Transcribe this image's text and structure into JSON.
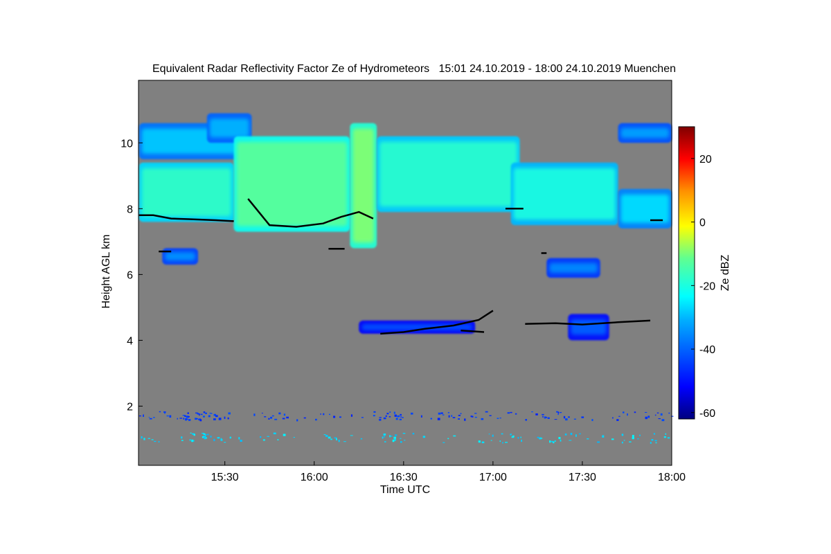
{
  "chart_data": {
    "type": "heatmap",
    "title": "Equivalent Radar Reflectivity Factor Ze of Hydrometeors   15:01 24.10.2019 - 18:00 24.10.2019 Muenchen",
    "xlabel": "Time UTC",
    "ylabel": "Height AGL km",
    "xlim": [
      15.017,
      18.0
    ],
    "ylim": [
      0.2,
      11.9
    ],
    "x_ticks": [
      {
        "value": 15.5,
        "label": "15:30"
      },
      {
        "value": 16.0,
        "label": "16:00"
      },
      {
        "value": 16.5,
        "label": "16:30"
      },
      {
        "value": 17.0,
        "label": "17:00"
      },
      {
        "value": 17.5,
        "label": "17:30"
      },
      {
        "value": 18.0,
        "label": "18:00"
      }
    ],
    "y_ticks": [
      {
        "value": 2,
        "label": "2"
      },
      {
        "value": 4,
        "label": "4"
      },
      {
        "value": 6,
        "label": "6"
      },
      {
        "value": 8,
        "label": "8"
      },
      {
        "value": 10,
        "label": "10"
      }
    ],
    "colorbar": {
      "label": "Ze dBZ",
      "range": [
        -62,
        30
      ],
      "ticks": [
        {
          "value": -60,
          "label": "-60"
        },
        {
          "value": -40,
          "label": "-40"
        },
        {
          "value": -20,
          "label": "-20"
        },
        {
          "value": 0,
          "label": "0"
        },
        {
          "value": 20,
          "label": "20"
        }
      ]
    },
    "background_color": "#808080",
    "echo_regions": [
      {
        "name": "upper-cirrus-left",
        "x": [
          15.02,
          15.58
        ],
        "base_km": 9.5,
        "top_km": 10.6,
        "ze_dbz": -28
      },
      {
        "name": "upper-cirrus-left-2",
        "x": [
          15.4,
          15.65
        ],
        "base_km": 10.0,
        "top_km": 10.9,
        "ze_dbz": -30
      },
      {
        "name": "main-cirrus-west",
        "x": [
          15.02,
          15.55
        ],
        "base_km": 7.6,
        "top_km": 9.4,
        "ze_dbz": -17
      },
      {
        "name": "main-cirrus-central",
        "x": [
          15.55,
          16.2
        ],
        "base_km": 7.3,
        "top_km": 10.2,
        "ze_dbz": -12
      },
      {
        "name": "main-cirrus-peak",
        "x": [
          16.2,
          16.35
        ],
        "base_km": 6.8,
        "top_km": 10.6,
        "ze_dbz": -9
      },
      {
        "name": "main-cirrus-east",
        "x": [
          16.35,
          17.15
        ],
        "base_km": 7.9,
        "top_km": 10.2,
        "ze_dbz": -18
      },
      {
        "name": "cirrus-trailing",
        "x": [
          17.1,
          17.7
        ],
        "base_km": 7.5,
        "top_km": 9.4,
        "ze_dbz": -20
      },
      {
        "name": "cirrus-far-east",
        "x": [
          17.7,
          18.0
        ],
        "base_km": 7.4,
        "top_km": 8.6,
        "ze_dbz": -26
      },
      {
        "name": "upper-patches-east",
        "x": [
          17.7,
          18.0
        ],
        "base_km": 10.0,
        "top_km": 10.6,
        "ze_dbz": -32
      },
      {
        "name": "patch-6.5km",
        "x": [
          15.15,
          15.35
        ],
        "base_km": 6.3,
        "top_km": 6.8,
        "ze_dbz": -34
      },
      {
        "name": "patch-6.2km-east",
        "x": [
          17.3,
          17.6
        ],
        "base_km": 5.9,
        "top_km": 6.5,
        "ze_dbz": -35
      },
      {
        "name": "midlevel-4.3km",
        "x": [
          16.25,
          16.9
        ],
        "base_km": 4.2,
        "top_km": 4.6,
        "ze_dbz": -42
      },
      {
        "name": "midlevel-4.5km-east",
        "x": [
          17.42,
          17.65
        ],
        "base_km": 4.0,
        "top_km": 4.8,
        "ze_dbz": -40
      },
      {
        "name": "low-noise-clutter",
        "x": [
          15.02,
          18.0
        ],
        "base_km": 0.3,
        "top_km": 1.9,
        "ze_dbz": -50
      }
    ],
    "black_trace_segments": [
      {
        "x": [
          15.02,
          15.1,
          15.2,
          15.3,
          15.45,
          15.55
        ],
        "y": [
          7.8,
          7.8,
          7.7,
          7.68,
          7.65,
          7.62
        ]
      },
      {
        "x": [
          15.63,
          15.75,
          15.9,
          16.05,
          16.15,
          16.25,
          16.33
        ],
        "y": [
          8.3,
          7.5,
          7.45,
          7.55,
          7.75,
          7.9,
          7.7
        ]
      },
      {
        "x": [
          15.13,
          15.2
        ],
        "y": [
          6.7,
          6.7
        ]
      },
      {
        "x": [
          16.08,
          16.17
        ],
        "y": [
          6.78,
          6.78
        ]
      },
      {
        "x": [
          16.37,
          16.5,
          16.62,
          16.78,
          16.92,
          17.0
        ],
        "y": [
          4.2,
          4.25,
          4.35,
          4.45,
          4.62,
          4.9
        ]
      },
      {
        "x": [
          16.82,
          16.95
        ],
        "y": [
          4.3,
          4.25
        ]
      },
      {
        "x": [
          17.07,
          17.17
        ],
        "y": [
          8.0,
          8.0
        ]
      },
      {
        "x": [
          17.18,
          17.35,
          17.5,
          17.7,
          17.88
        ],
        "y": [
          4.5,
          4.52,
          4.48,
          4.55,
          4.6
        ]
      },
      {
        "x": [
          17.88,
          17.95
        ],
        "y": [
          7.65,
          7.65
        ]
      },
      {
        "x": [
          17.27,
          17.3
        ],
        "y": [
          6.65,
          6.65
        ]
      }
    ]
  }
}
